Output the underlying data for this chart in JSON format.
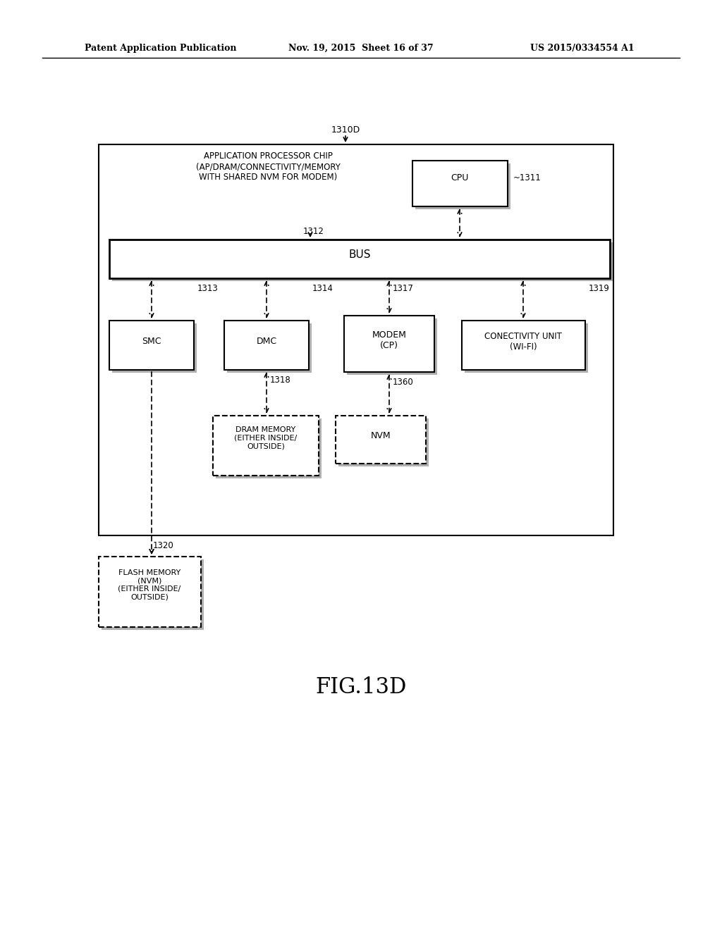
{
  "background_color": "#ffffff",
  "header_left": "Patent Application Publication",
  "header_mid": "Nov. 19, 2015  Sheet 16 of 37",
  "header_right": "US 2015/0334554 A1",
  "figure_label": "FIG.13D",
  "outer_box_label": "1310D",
  "chip_label_text": "APPLICATION PROCESSOR CHIP\n(AP/DRAM/CONNECTIVITY/MEMORY\nWITH SHARED NVM FOR MODEM)",
  "cpu_label": "CPU",
  "cpu_ref": "~1311",
  "bus_label": "BUS",
  "bus_ref": "1312",
  "smc_label": "SMC",
  "smc_ref": "1313",
  "dmc_label": "DMC",
  "dmc_ref": "1314",
  "modem_label": "MODEM\n(CP)",
  "modem_ref": "1317",
  "conn_label": "CONECTIVITY UNIT\n(WI-FI)",
  "conn_ref": "1319",
  "dram_label": "DRAM MEMORY\n(EITHER INSIDE/\nOUTSIDE)",
  "dram_ref": "1318",
  "nvm_label": "NVM",
  "nvm_ref": "1360",
  "flash_label": "FLASH MEMORY\n(NVM)\n(EITHER INSIDE/\nOUTSIDE)",
  "flash_ref": "1320"
}
